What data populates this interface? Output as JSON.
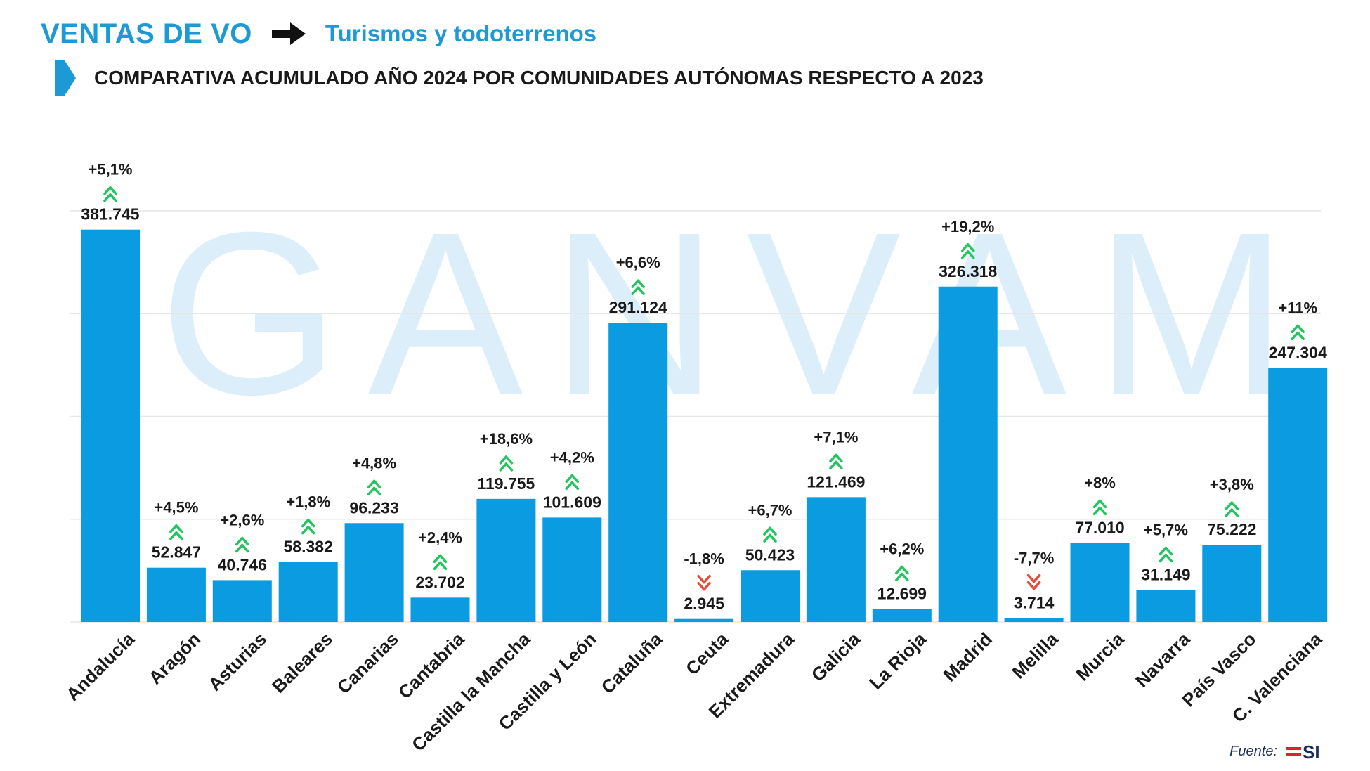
{
  "header": {
    "title": "VENTAS DE VO",
    "subtitle": "Turismos y todoterrenos",
    "comparison": "COMPARATIVA ACUMULADO AÑO 2024 POR COMUNIDADES AUTÓNOMAS RESPECTO A 2023"
  },
  "watermark": "GANVAM",
  "source": {
    "label": "Fuente:",
    "logo": "MSI"
  },
  "colors": {
    "accent": "#1d9ad6",
    "bar": "#0a9be0",
    "up": "#22c55e",
    "down": "#e74c3c",
    "watermark": "#dbeef9"
  },
  "chart_data": {
    "type": "bar",
    "title": "COMPARATIVA ACUMULADO AÑO 2024 POR COMUNIDADES AUTÓNOMAS RESPECTO A 2023",
    "xlabel": "",
    "ylabel": "",
    "ylim": [
      0,
      400000
    ],
    "grid": true,
    "categories": [
      "Andalucía",
      "Aragón",
      "Asturias",
      "Baleares",
      "Canarias",
      "Cantabria",
      "Castilla la Mancha",
      "Castilla y León",
      "Cataluña",
      "Ceuta",
      "Extremadura",
      "Galicia",
      "La Rioja",
      "Madrid",
      "Melilla",
      "Murcia",
      "Navarra",
      "País Vasco",
      "C. Valenciana"
    ],
    "values": [
      381745,
      52847,
      40746,
      58382,
      96233,
      23702,
      119755,
      101609,
      291124,
      2945,
      50423,
      121469,
      12699,
      326318,
      3714,
      77010,
      31149,
      75222,
      247304
    ],
    "value_labels": [
      "381.745",
      "52.847",
      "40.746",
      "58.382",
      "96.233",
      "23.702",
      "119.755",
      "101.609",
      "291.124",
      "2.945",
      "50.423",
      "121.469",
      "12.699",
      "326.318",
      "3.714",
      "77.010",
      "31.149",
      "75.222",
      "247.304"
    ],
    "changes": [
      "+5,1%",
      "+4,5%",
      "+2,6%",
      "+1,8%",
      "+4,8%",
      "+2,4%",
      "+18,6%",
      "+4,2%",
      "+6,6%",
      "-1,8%",
      "+6,7%",
      "+7,1%",
      "+6,2%",
      "+19,2%",
      "-7,7%",
      "+8%",
      "+5,7%",
      "+3,8%",
      "+11%"
    ],
    "trend": [
      "up",
      "up",
      "up",
      "up",
      "up",
      "up",
      "up",
      "up",
      "up",
      "down",
      "up",
      "up",
      "up",
      "up",
      "down",
      "up",
      "up",
      "up",
      "up"
    ]
  }
}
